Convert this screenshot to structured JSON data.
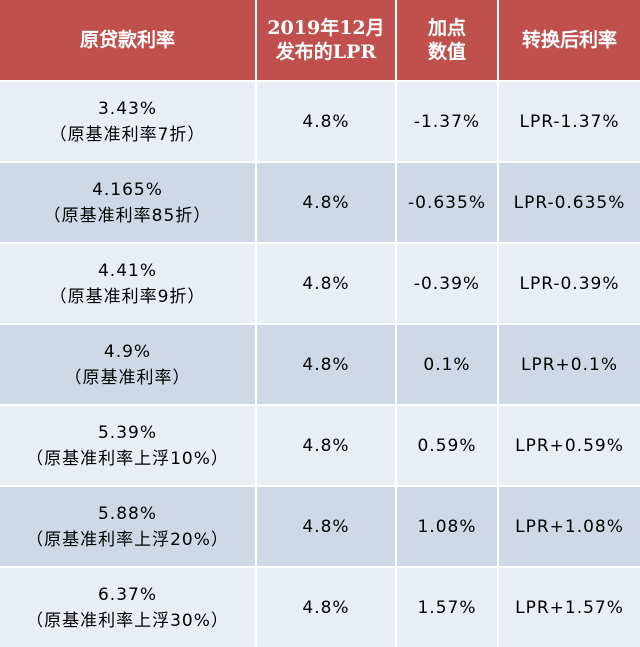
{
  "header": {
    "col1": "原贷款利率",
    "col2_line1": "2019年12月",
    "col2_line2": "发布的LPR",
    "col3_line1": "加点",
    "col3_line2": "数值",
    "col4": "转换后利率"
  },
  "rows": [
    {
      "rate": "3.43%",
      "note": "（原基准利率7折）",
      "lpr": "4.8%",
      "spread": "-1.37%",
      "converted": "LPR-1.37%"
    },
    {
      "rate": "4.165%",
      "note": "（原基准利率85折）",
      "lpr": "4.8%",
      "spread": "-0.635%",
      "converted": "LPR-0.635%"
    },
    {
      "rate": "4.41%",
      "note": "（原基准利率9折）",
      "lpr": "4.8%",
      "spread": "-0.39%",
      "converted": "LPR-0.39%"
    },
    {
      "rate": "4.9%",
      "note": "（原基准利率）",
      "lpr": "4.8%",
      "spread": "0.1%",
      "converted": "LPR+0.1%"
    },
    {
      "rate": "5.39%",
      "note": "（原基准利率上浮10%）",
      "lpr": "4.8%",
      "spread": "0.59%",
      "converted": "LPR+0.59%"
    },
    {
      "rate": "5.88%",
      "note": "（原基准利率上浮20%）",
      "lpr": "4.8%",
      "spread": "1.08%",
      "converted": "LPR+1.08%"
    },
    {
      "rate": "6.37%",
      "note": "（原基准利率上浮30%）",
      "lpr": "4.8%",
      "spread": "1.57%",
      "converted": "LPR+1.57%"
    }
  ],
  "colors": {
    "header_bg": "#c0504d",
    "row_light": "#e9edf4",
    "row_dark": "#d0d8e8"
  }
}
